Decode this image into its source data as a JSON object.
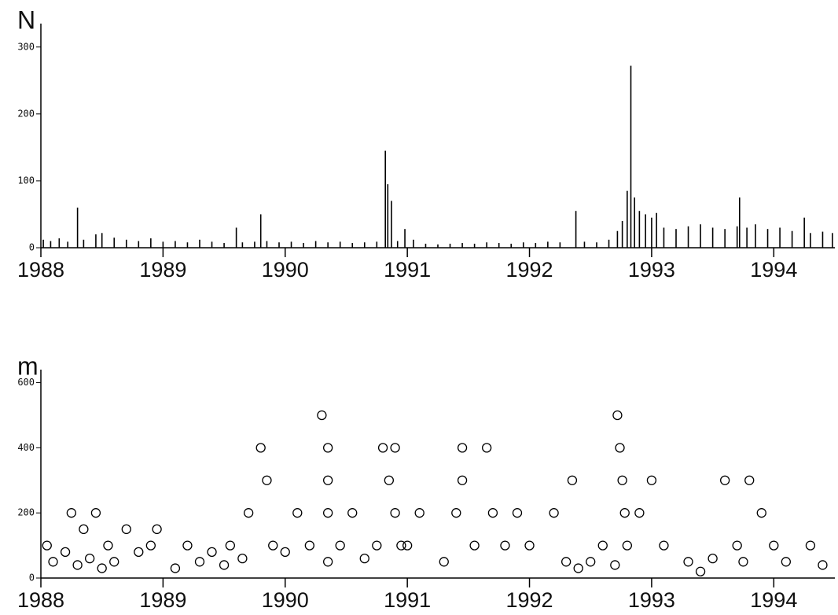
{
  "chart_data": [
    {
      "type": "bar",
      "y_label": "N",
      "color": "#000000",
      "xlim": [
        1988,
        1994.5
      ],
      "xticks": [
        1988,
        1989,
        1990,
        1991,
        1992,
        1993,
        1994
      ],
      "ylim": [
        0,
        335
      ],
      "yticks": [
        0,
        100,
        200,
        300
      ],
      "x": [
        1988.02,
        1988.08,
        1988.15,
        1988.22,
        1988.3,
        1988.35,
        1988.45,
        1988.5,
        1988.6,
        1988.7,
        1988.8,
        1988.9,
        1989.0,
        1989.1,
        1989.2,
        1989.3,
        1989.4,
        1989.5,
        1989.6,
        1989.65,
        1989.75,
        1989.8,
        1989.85,
        1989.95,
        1990.05,
        1990.15,
        1990.25,
        1990.35,
        1990.45,
        1990.55,
        1990.65,
        1990.75,
        1990.82,
        1990.84,
        1990.87,
        1990.92,
        1990.98,
        1991.05,
        1991.15,
        1991.25,
        1991.35,
        1991.45,
        1991.55,
        1991.65,
        1991.75,
        1991.85,
        1991.95,
        1992.05,
        1992.15,
        1992.25,
        1992.38,
        1992.45,
        1992.55,
        1992.65,
        1992.72,
        1992.76,
        1992.8,
        1992.83,
        1992.86,
        1992.9,
        1992.95,
        1993.0,
        1993.04,
        1993.1,
        1993.2,
        1993.3,
        1993.4,
        1993.5,
        1993.6,
        1993.7,
        1993.72,
        1993.78,
        1993.85,
        1993.95,
        1994.05,
        1994.15,
        1994.25,
        1994.3,
        1994.4,
        1994.48
      ],
      "values": [
        12,
        10,
        14,
        9,
        60,
        12,
        20,
        22,
        15,
        12,
        10,
        14,
        9,
        10,
        8,
        12,
        9,
        7,
        30,
        8,
        9,
        50,
        10,
        8,
        9,
        7,
        10,
        8,
        9,
        7,
        8,
        9,
        145,
        95,
        70,
        10,
        28,
        12,
        6,
        5,
        6,
        7,
        6,
        8,
        7,
        6,
        8,
        7,
        9,
        8,
        55,
        9,
        8,
        12,
        25,
        40,
        85,
        272,
        75,
        55,
        50,
        45,
        52,
        30,
        28,
        32,
        35,
        30,
        28,
        32,
        75,
        30,
        35,
        28,
        30,
        25,
        45,
        22,
        24,
        22
      ]
    },
    {
      "type": "scatter",
      "y_label": "m",
      "color": "#000000",
      "xlim": [
        1988,
        1994.5
      ],
      "xticks": [
        1988,
        1989,
        1990,
        1991,
        1992,
        1993,
        1994
      ],
      "ylim": [
        0,
        640
      ],
      "yticks": [
        0,
        200,
        400,
        600
      ],
      "x": [
        1988.05,
        1988.1,
        1988.2,
        1988.25,
        1988.3,
        1988.35,
        1988.4,
        1988.45,
        1988.5,
        1988.55,
        1988.6,
        1988.7,
        1988.8,
        1988.9,
        1988.95,
        1989.1,
        1989.2,
        1989.3,
        1989.4,
        1989.5,
        1989.55,
        1989.65,
        1989.7,
        1989.8,
        1989.85,
        1989.9,
        1990.0,
        1990.1,
        1990.2,
        1990.3,
        1990.35,
        1990.35,
        1990.35,
        1990.35,
        1990.45,
        1990.55,
        1990.65,
        1990.75,
        1990.8,
        1990.85,
        1990.9,
        1990.9,
        1990.95,
        1991.0,
        1991.1,
        1991.3,
        1991.4,
        1991.45,
        1991.45,
        1991.55,
        1991.65,
        1991.7,
        1991.8,
        1991.9,
        1992.0,
        1992.2,
        1992.3,
        1992.35,
        1992.4,
        1992.5,
        1992.6,
        1992.7,
        1992.72,
        1992.74,
        1992.76,
        1992.78,
        1992.8,
        1992.9,
        1993.0,
        1993.1,
        1993.3,
        1993.4,
        1993.5,
        1993.6,
        1993.7,
        1993.75,
        1993.8,
        1993.9,
        1994.0,
        1994.1,
        1994.3,
        1994.4
      ],
      "values": [
        100,
        50,
        80,
        200,
        40,
        150,
        60,
        200,
        30,
        100,
        50,
        150,
        80,
        100,
        150,
        30,
        100,
        50,
        80,
        40,
        100,
        60,
        200,
        400,
        300,
        100,
        80,
        200,
        100,
        500,
        400,
        300,
        200,
        50,
        100,
        200,
        60,
        100,
        400,
        300,
        400,
        200,
        100,
        100,
        200,
        50,
        200,
        400,
        300,
        100,
        400,
        200,
        100,
        200,
        100,
        200,
        50,
        300,
        30,
        50,
        100,
        40,
        500,
        400,
        300,
        200,
        100,
        200,
        300,
        100,
        50,
        20,
        60,
        300,
        100,
        50,
        300,
        200,
        100,
        50,
        100,
        40
      ]
    }
  ]
}
